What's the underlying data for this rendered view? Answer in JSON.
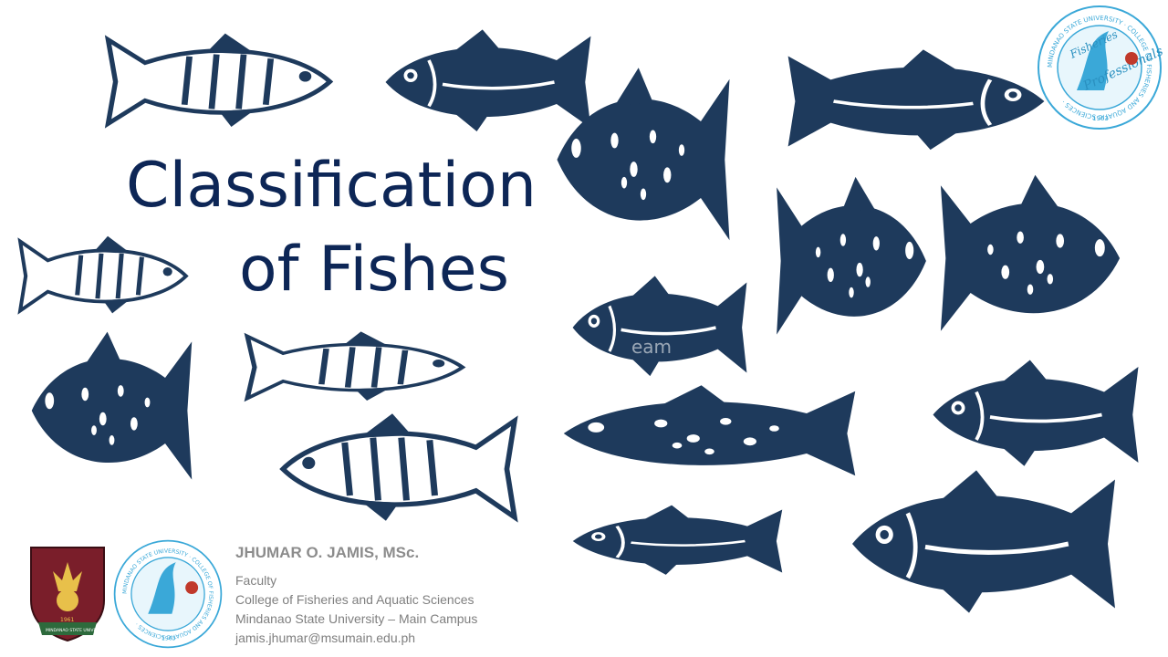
{
  "slide": {
    "title_line1": "Classification",
    "title_line2": "of Fishes",
    "author": {
      "name": "JHUMAR O. JAMIS, MSc.",
      "position": "Faculty",
      "college": "College of Fisheries and Aquatic Sciences",
      "university": "Mindanao State University  – Main Campus",
      "email": "jamis.jhumar@msumain.edu.ph"
    },
    "logos": {
      "msu_seal": {
        "year": "1961",
        "banner": "MINDANAO STATE UNIVERSITY"
      },
      "cfas_seal": {
        "ring_text": "MINDANAO STATE UNIVERSITY · COLLEGE OF FISHERIES AND AQUATIC SCIENCES ·",
        "script_word1": "Fisheries",
        "script_word2": "Professionals",
        "year": "1963"
      }
    },
    "watermark": "eam",
    "colors": {
      "title": "#0d2656",
      "fish": "#1e3a5c",
      "text_gray": "#7f7f7f",
      "seal_blue": "#3aa8d8",
      "msu_maroon": "#7a1e2a"
    },
    "icons": [
      "tuna-icon",
      "bream-icon",
      "perch-icon",
      "pike-icon",
      "mackerel-icon",
      "marlin-icon",
      "salmon-icon",
      "flounder-icon",
      "carp-icon",
      "sprat-icon",
      "catfish-icon"
    ]
  }
}
